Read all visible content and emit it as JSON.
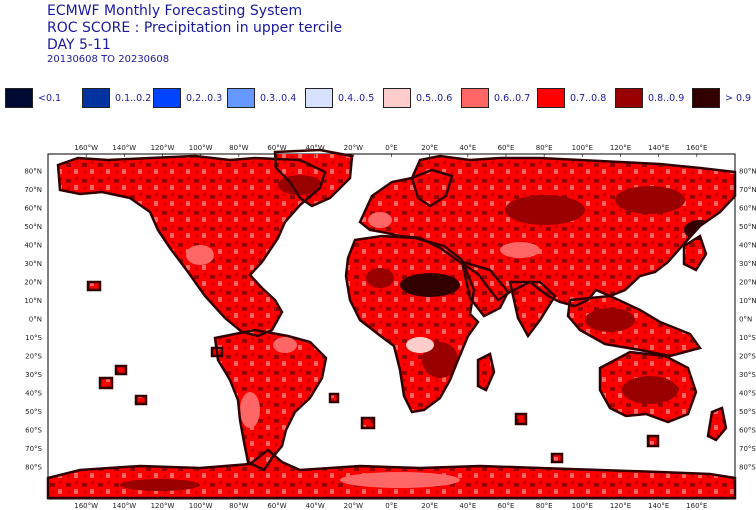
{
  "header": {
    "line1": "ECMWF Monthly Forecasting System",
    "line2": "ROC SCORE : Precipitation in  upper tercile",
    "line3": "DAY 5-11",
    "period": "20130608 TO 20230608"
  },
  "legend": [
    {
      "label": "<0.1",
      "color": "#000a33"
    },
    {
      "label": "0.1..0.2",
      "color": "#0033a0"
    },
    {
      "label": "0.2..0.3",
      "color": "#0044ff"
    },
    {
      "label": "0.3..0.4",
      "color": "#6699ff"
    },
    {
      "label": "0.4..0.5",
      "color": "#d6e2ff"
    },
    {
      "label": "0.5..0.6",
      "color": "#ffcccc"
    },
    {
      "label": "0.6..0.7",
      "color": "#ff6666"
    },
    {
      "label": "0.7..0.8",
      "color": "#ff0000"
    },
    {
      "label": "0.8..0.9",
      "color": "#990000"
    },
    {
      "label": "> 0.9",
      "color": "#330000"
    }
  ],
  "axes": {
    "lon_labels": [
      "160°W",
      "140°W",
      "120°W",
      "100°W",
      "80°W",
      "60°W",
      "40°W",
      "20°W",
      "0°E",
      "20°E",
      "40°E",
      "60°E",
      "80°E",
      "100°E",
      "120°E",
      "140°E",
      "160°E"
    ],
    "lat_labels": [
      "80°N",
      "70°N",
      "60°N",
      "50°N",
      "40°N",
      "30°N",
      "20°N",
      "10°N",
      "0°N",
      "10°S",
      "20°S",
      "30°S",
      "40°S",
      "50°S",
      "60°S",
      "70°S",
      "80°S"
    ]
  }
}
